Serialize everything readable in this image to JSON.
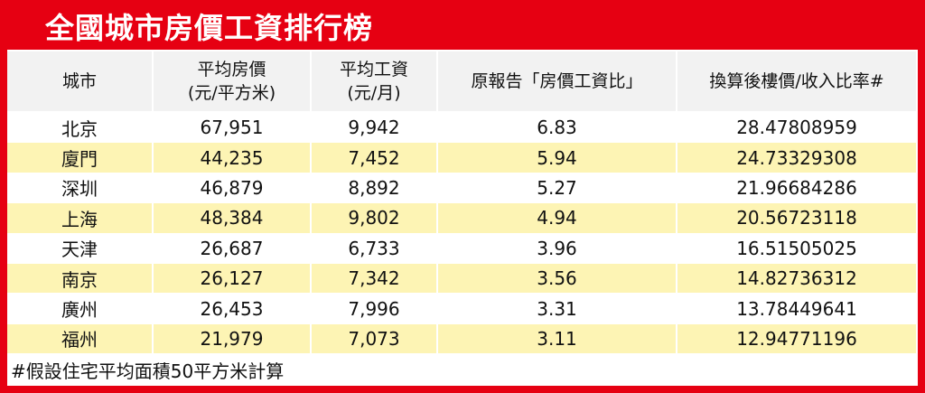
{
  "title": "全國城市房價工資排行榜",
  "table": {
    "header": [
      [
        "城市"
      ],
      [
        "平均房價",
        "(元/平方米)"
      ],
      [
        "平均工資",
        "(元/月)"
      ],
      [
        "原報告「房價工資比」"
      ],
      [
        "換算後樓價/收入比率#"
      ]
    ],
    "rows": [
      [
        "北京",
        "67,951",
        "9,942",
        "6.83",
        "28.47808959"
      ],
      [
        "廈門",
        "44,235",
        "7,452",
        "5.94",
        "24.73329308"
      ],
      [
        "深圳",
        "46,879",
        "8,892",
        "5.27",
        "21.96684286"
      ],
      [
        "上海",
        "48,384",
        "9,802",
        "4.94",
        "20.56723118"
      ],
      [
        "天津",
        "26,687",
        "6,733",
        "3.96",
        "16.51505025"
      ],
      [
        "南京",
        "26,127",
        "7,342",
        "3.56",
        "14.82736312"
      ],
      [
        "廣州",
        "26,453",
        "7,996",
        "3.31",
        "13.78449641"
      ],
      [
        "福州",
        "21,979",
        "7,073",
        "3.11",
        "12.94771196"
      ]
    ]
  },
  "footnote": "#假設住宅平均面積50平方米計算"
}
